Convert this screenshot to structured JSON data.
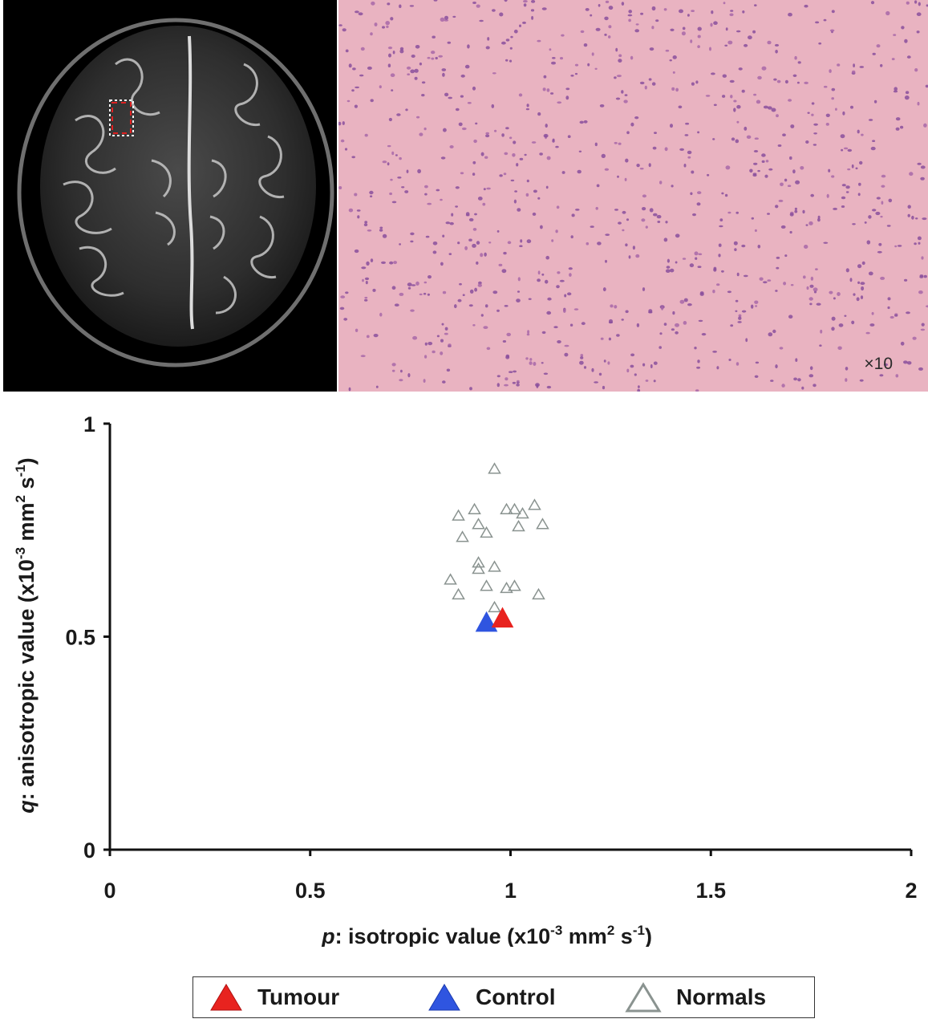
{
  "images": {
    "mri": {
      "kind": "axial brain MRI with ROI box"
    },
    "histology": {
      "magnification": "×10"
    }
  },
  "chart_data": {
    "type": "scatter",
    "xlabel_italic": "p",
    "xlabel_rest": ": isotropic value (x10",
    "xlabel_exp": "-3",
    "xlabel_unit": " mm",
    "xlabel_exp2": "2",
    "xlabel_s": " s",
    "xlabel_exp3": "-1",
    "xlabel_close": ")",
    "ylabel_italic": "q",
    "ylabel_rest": ": anisotropic value (x10",
    "ylabel_exp": "-3",
    "ylabel_unit": " mm",
    "ylabel_exp2": "2",
    "ylabel_s": " s",
    "ylabel_exp3": "-1",
    "ylabel_close": ")",
    "xlim": [
      0,
      2
    ],
    "ylim": [
      0,
      1
    ],
    "xticks": [
      "0",
      "0.5",
      "1",
      "1.5",
      "2"
    ],
    "yticks": [
      "0",
      "0.5",
      "1"
    ],
    "legend_position": "bottom",
    "series": [
      {
        "name": "Tumour",
        "marker": "filled-triangle",
        "color": "#e8231f",
        "points": [
          [
            0.98,
            0.545
          ]
        ]
      },
      {
        "name": "Control",
        "marker": "filled-triangle",
        "color": "#2f55e0",
        "points": [
          [
            0.94,
            0.535
          ]
        ]
      },
      {
        "name": "Normals",
        "marker": "open-triangle",
        "color": "#8a9390",
        "points": [
          [
            0.96,
            0.895
          ],
          [
            0.87,
            0.785
          ],
          [
            0.91,
            0.8
          ],
          [
            0.92,
            0.765
          ],
          [
            0.88,
            0.735
          ],
          [
            0.94,
            0.745
          ],
          [
            0.99,
            0.8
          ],
          [
            1.01,
            0.8
          ],
          [
            1.03,
            0.79
          ],
          [
            1.06,
            0.81
          ],
          [
            1.02,
            0.76
          ],
          [
            1.08,
            0.765
          ],
          [
            0.92,
            0.675
          ],
          [
            0.92,
            0.66
          ],
          [
            0.96,
            0.665
          ],
          [
            0.85,
            0.635
          ],
          [
            0.94,
            0.62
          ],
          [
            0.99,
            0.615
          ],
          [
            1.01,
            0.62
          ],
          [
            0.87,
            0.6
          ],
          [
            1.07,
            0.6
          ],
          [
            0.96,
            0.57
          ]
        ]
      }
    ]
  }
}
